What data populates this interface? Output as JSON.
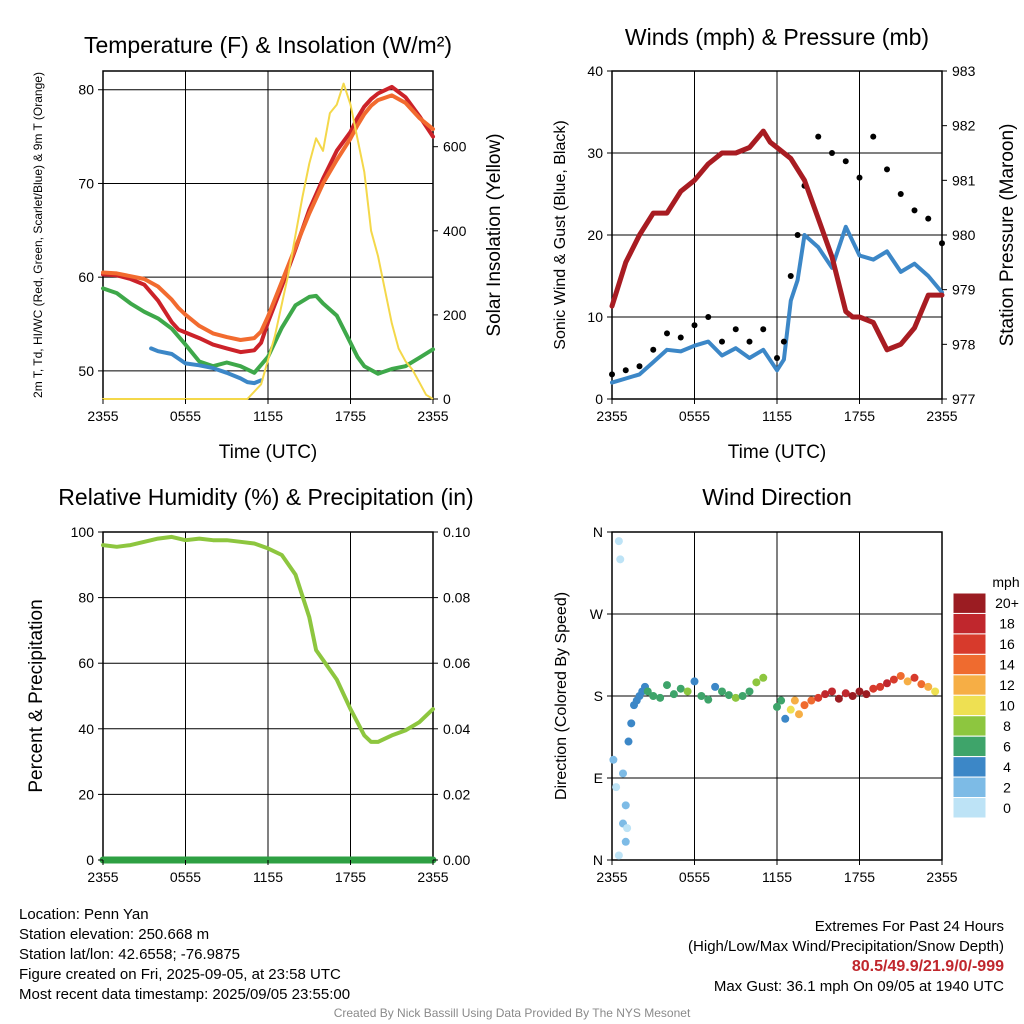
{
  "chart_data": [
    {
      "type": "line",
      "title": "Temperature (F) & Insolation (W/m²)",
      "xlabel": "Time (UTC)",
      "ylabel": "2m T, Td, HI/WC (Red, Green, Scarlet/Blue) & 9m T (Orange)",
      "y2label": "Solar Insolation (Yellow)",
      "x_ticks": [
        "2355",
        "0555",
        "1155",
        "1755",
        "2355"
      ],
      "ylim": [
        47,
        82
      ],
      "y_ticks": [
        50,
        60,
        70,
        80
      ],
      "y2lim": [
        0,
        780
      ],
      "y2_ticks": [
        0,
        200,
        400,
        600
      ],
      "grid": true,
      "series": [
        {
          "color": "#cc2229",
          "axis": "left",
          "x": [
            0,
            1,
            2,
            3,
            4,
            5,
            5.5,
            6,
            7,
            8,
            9,
            10,
            11,
            11.5,
            12,
            13,
            14,
            15,
            16,
            17,
            18,
            18.5,
            19,
            19.5,
            20,
            21,
            22,
            23,
            24
          ],
          "y": [
            60.3,
            60.2,
            59.8,
            59.2,
            57.5,
            55.2,
            54.4,
            54.1,
            53.5,
            52.8,
            52.4,
            52.0,
            52.2,
            53.0,
            55.2,
            59.0,
            63.0,
            67.2,
            70.5,
            73.5,
            75.5,
            77.0,
            78.2,
            79.0,
            79.6,
            80.3,
            79.2,
            77.2,
            75.0
          ]
        },
        {
          "color": "#f26b2f",
          "axis": "left",
          "x": [
            0,
            1,
            2,
            3,
            4,
            5,
            5.5,
            6,
            7,
            8,
            9,
            10,
            11,
            11.5,
            12,
            13,
            14,
            15,
            16,
            17,
            18,
            18.5,
            19,
            19.5,
            20,
            21,
            22,
            23,
            24
          ],
          "y": [
            60.5,
            60.4,
            60.1,
            59.8,
            59.0,
            57.6,
            56.7,
            56.0,
            54.8,
            54.0,
            53.6,
            53.3,
            53.5,
            54.2,
            55.8,
            59.5,
            63.2,
            66.8,
            70.0,
            72.5,
            74.8,
            76.2,
            77.4,
            78.3,
            78.9,
            79.4,
            78.6,
            77.0,
            75.8
          ]
        },
        {
          "color": "#3ea84a",
          "axis": "left",
          "x": [
            0,
            1,
            2,
            3,
            4,
            5,
            6,
            7,
            8,
            9,
            10,
            11,
            12,
            13,
            14,
            15,
            15.5,
            16,
            17,
            18,
            18.5,
            19,
            20,
            21,
            22,
            23,
            24
          ],
          "y": [
            58.8,
            58.3,
            57.2,
            56.3,
            55.6,
            54.5,
            52.8,
            51.0,
            50.5,
            50.9,
            50.5,
            49.8,
            51.5,
            54.6,
            57.0,
            57.9,
            58.0,
            57.2,
            55.9,
            53.0,
            51.5,
            50.5,
            49.7,
            50.2,
            50.5,
            51.4,
            52.3
          ]
        },
        {
          "color": "#3c87c7",
          "axis": "left",
          "x": [
            3.5,
            4,
            5,
            6,
            7,
            8,
            9,
            10,
            10.5,
            11,
            11.5
          ],
          "y": [
            52.4,
            52.1,
            51.8,
            50.8,
            50.6,
            50.3,
            49.8,
            49.2,
            48.8,
            48.7,
            49.0
          ]
        },
        {
          "color": "#f4d84a",
          "axis": "right",
          "x": [
            0,
            10.5,
            11.5,
            12.5,
            13.5,
            14.5,
            15.0,
            15.5,
            16.0,
            16.5,
            17.0,
            17.5,
            18.0,
            18.5,
            19.0,
            19.5,
            20.0,
            20.5,
            21.0,
            21.5,
            22.0,
            22.5,
            23.0,
            23.5,
            24
          ],
          "y": [
            0,
            0,
            35,
            150,
            300,
            480,
            560,
            620,
            590,
            680,
            700,
            750,
            700,
            620,
            540,
            400,
            340,
            260,
            180,
            120,
            90,
            70,
            40,
            10,
            0
          ]
        }
      ]
    },
    {
      "type": "line",
      "title": "Winds (mph) & Pressure (mb)",
      "xlabel": "Time (UTC)",
      "ylabel": "Sonic Wind & Gust (Blue, Black)",
      "y2label": "Station Pressure (Maroon)",
      "x_ticks": [
        "2355",
        "0555",
        "1155",
        "1755",
        "2355"
      ],
      "ylim": [
        0,
        40
      ],
      "y_ticks": [
        0,
        10,
        20,
        30,
        40
      ],
      "y2lim": [
        977,
        983
      ],
      "y2_ticks": [
        977,
        978,
        979,
        980,
        981,
        982,
        983
      ],
      "grid": true,
      "series": [
        {
          "color": "#3c87c7",
          "axis": "left",
          "x": [
            0,
            1,
            2,
            3,
            4,
            5,
            6,
            7,
            8,
            9,
            10,
            11,
            12,
            12.5,
            13,
            13.5,
            14,
            15,
            16,
            17,
            18,
            19,
            20,
            21,
            22,
            23,
            24
          ],
          "y": [
            2.0,
            2.5,
            3.0,
            4.5,
            6.0,
            5.8,
            6.5,
            7.0,
            5.3,
            6.2,
            5.0,
            6.0,
            3.5,
            4.8,
            12.0,
            14.5,
            20.0,
            18.5,
            16.0,
            21.0,
            17.5,
            17.0,
            18.0,
            15.5,
            16.5,
            15.0,
            13.0
          ]
        },
        {
          "color": "#000000",
          "axis": "left",
          "marker": "dot",
          "x": [
            0,
            1,
            2,
            3,
            4,
            5,
            6,
            7,
            8,
            9,
            10,
            11,
            12,
            12.5,
            13,
            13.5,
            14,
            15,
            16,
            17,
            18,
            19,
            20,
            21,
            22,
            23,
            24
          ],
          "y": [
            3.0,
            3.5,
            4.0,
            6.0,
            8.0,
            7.5,
            9.0,
            10.0,
            7.0,
            8.5,
            7.0,
            8.5,
            5.0,
            7.0,
            15.0,
            20.0,
            26.0,
            32.0,
            30.0,
            29.0,
            27.0,
            32.0,
            28.0,
            25.0,
            23.0,
            22.0,
            19.0
          ]
        },
        {
          "color": "#a81c22",
          "axis": "right",
          "x": [
            0,
            1,
            2,
            3,
            4,
            5,
            6,
            7,
            8,
            9,
            10,
            11,
            11.5,
            12,
            13,
            14,
            15,
            16,
            17,
            17.5,
            18,
            19,
            20,
            21,
            22,
            23,
            24
          ],
          "y": [
            978.7,
            979.5,
            980.0,
            980.4,
            980.4,
            980.8,
            981.0,
            981.3,
            981.5,
            981.5,
            981.6,
            981.9,
            981.7,
            981.6,
            981.4,
            981.0,
            980.3,
            979.6,
            978.6,
            978.5,
            978.5,
            978.4,
            977.9,
            978.0,
            978.3,
            978.9,
            978.9
          ]
        }
      ]
    },
    {
      "type": "line",
      "title": "Relative Humidity (%) & Precipitation (in)",
      "ylabel": "Percent & Precipitation",
      "x_ticks": [
        "2355",
        "0555",
        "1155",
        "1755",
        "2355"
      ],
      "ylim": [
        0,
        100
      ],
      "y_ticks": [
        0,
        20,
        40,
        60,
        80,
        100
      ],
      "y2lim": [
        0,
        0.1
      ],
      "y2_ticks": [
        "0.00",
        "0.02",
        "0.04",
        "0.06",
        "0.08",
        "0.10"
      ],
      "grid": true,
      "series": [
        {
          "color": "#8dc63f",
          "axis": "left",
          "x": [
            0,
            1,
            2,
            3,
            4,
            5,
            6,
            7,
            8,
            9,
            10,
            11,
            12,
            13,
            14,
            15,
            15.5,
            16,
            17,
            18,
            19,
            19.5,
            20,
            21,
            22,
            23,
            24
          ],
          "y": [
            96,
            95.5,
            96,
            97,
            98,
            98.5,
            97.5,
            98,
            97.5,
            97.5,
            97,
            96.5,
            95,
            93,
            87,
            74,
            64,
            61,
            55,
            46,
            38,
            36,
            36,
            38,
            39.5,
            42,
            46
          ]
        },
        {
          "color": "#2ea043",
          "axis": "right",
          "x": [
            0,
            24
          ],
          "y": [
            0,
            0
          ]
        }
      ]
    },
    {
      "type": "scatter",
      "title": "Wind Direction",
      "ylabel": "Direction (Colored By Speed)",
      "x_ticks": [
        "2355",
        "0555",
        "1155",
        "1755",
        "2355"
      ],
      "y_ticks": [
        "N",
        "E",
        "S",
        "W",
        "N"
      ],
      "ylim": [
        0,
        360
      ],
      "legend_title": "mph",
      "legend_labels": [
        "0",
        "2",
        "4",
        "6",
        "8",
        "10",
        "12",
        "14",
        "16",
        "18",
        "20+"
      ],
      "legend_colors": [
        "#bde3f6",
        "#7dbbe6",
        "#3c87c7",
        "#3ea46a",
        "#8dc63f",
        "#eee052",
        "#f6ae45",
        "#ef6b2f",
        "#d73a2c",
        "#c0272d",
        "#9b1c22"
      ],
      "grid": true,
      "points": {
        "x": [
          0.1,
          0.3,
          0.5,
          0.6,
          0.8,
          1.0,
          1.2,
          1.4,
          1.6,
          1.8,
          2.0,
          2.2,
          2.4,
          2.6,
          3.0,
          3.5,
          4.0,
          4.5,
          5.0,
          5.5,
          6.0,
          6.5,
          7.0,
          7.5,
          8.0,
          8.5,
          9.0,
          9.5,
          10.0,
          10.5,
          11.0,
          12.0,
          12.3,
          12.6,
          13.0,
          13.3,
          13.6,
          14.0,
          14.5,
          15.0,
          15.5,
          16.0,
          16.5,
          17.0,
          17.5,
          18.0,
          18.5,
          19.0,
          19.5,
          20.0,
          20.5,
          21.0,
          21.5,
          22.0,
          22.5,
          23.0,
          23.5,
          0.5,
          0.8,
          1.0,
          1.1
        ],
        "y": [
          110,
          80,
          5,
          330,
          40,
          60,
          130,
          150,
          170,
          175,
          180,
          185,
          190,
          185,
          180,
          178,
          192,
          182,
          188,
          185,
          196,
          180,
          176,
          190,
          185,
          181,
          178,
          180,
          185,
          195,
          200,
          168,
          175,
          155,
          165,
          175,
          160,
          170,
          175,
          178,
          182,
          185,
          177,
          183,
          180,
          185,
          182,
          188,
          190,
          194,
          198,
          202,
          196,
          200,
          193,
          190,
          185,
          350,
          95,
          20,
          35
        ],
        "speed": [
          2,
          0,
          0,
          0,
          2,
          1,
          3,
          4,
          4,
          4,
          4,
          4,
          4,
          5,
          6,
          5,
          6,
          5,
          6,
          8,
          4,
          6,
          5,
          4,
          6,
          5,
          7,
          6,
          6,
          7,
          8,
          5,
          6,
          4,
          10,
          11,
          12,
          13,
          14,
          16,
          17,
          18,
          19,
          17,
          19,
          20,
          19,
          16,
          15,
          17,
          16,
          14,
          11,
          15,
          13,
          12,
          10,
          0,
          1,
          2,
          0
        ]
      }
    }
  ],
  "info": {
    "location": "Location: Penn Yan",
    "elevation": "Station elevation: 250.668 m",
    "latlon": "Station lat/lon: 42.6558; -76.9875",
    "created": "Figure created on Fri, 2025-09-05, at 23:58 UTC",
    "recent": "Most recent data timestamp: 2025/09/05 23:55:00"
  },
  "extremes": {
    "heading": "Extremes For Past 24 Hours",
    "subheading": "(High/Low/Max Wind/Precipitation/Snow Depth)",
    "values": "80.5/49.9/21.9/0/-999",
    "max_gust": "Max Gust: 36.1 mph On 09/05 at 1940 UTC"
  },
  "credit": "Created By Nick Bassill Using Data Provided By The NYS Mesonet"
}
